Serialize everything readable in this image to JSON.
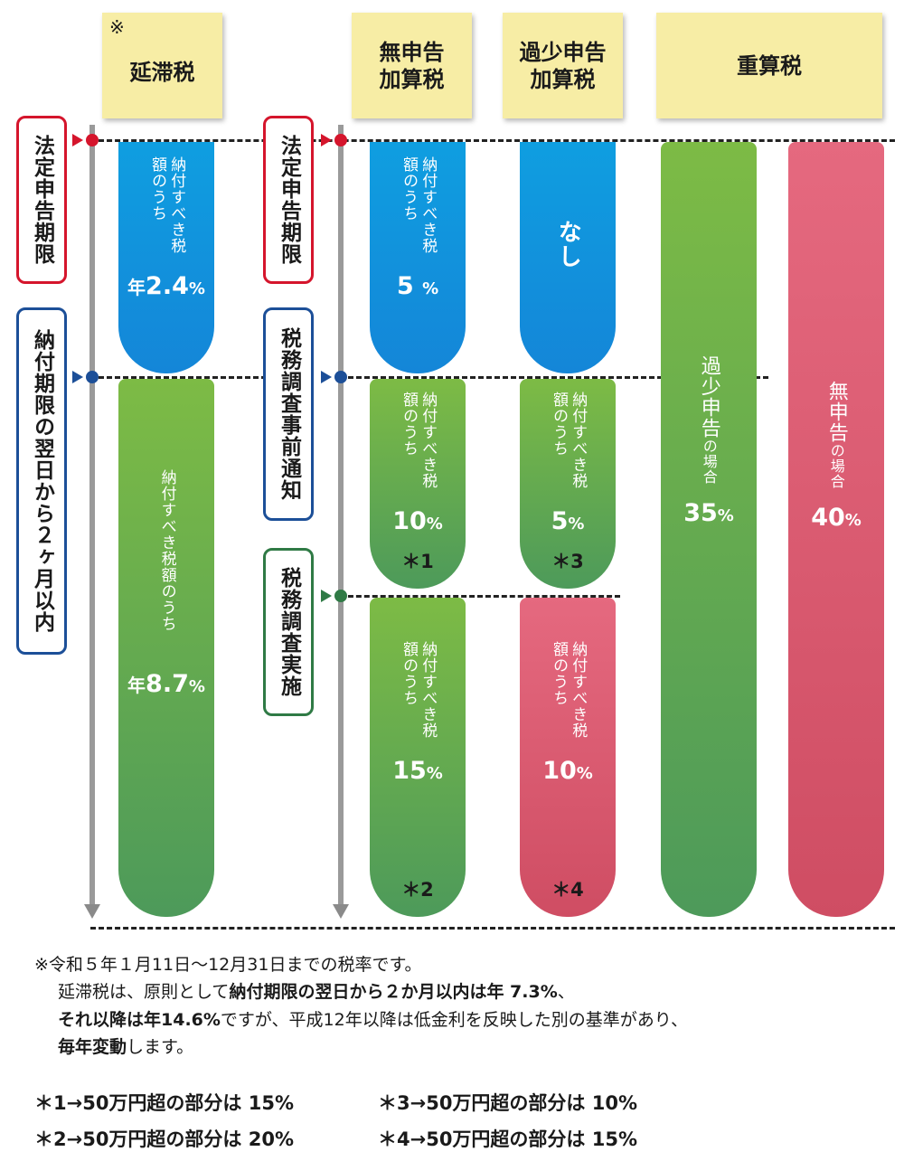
{
  "headers": {
    "entai": {
      "mark": "※",
      "label": "延滞税"
    },
    "mushinkoku": {
      "line1": "無申告",
      "line2": "加算税"
    },
    "kasho": {
      "line1": "過少申告",
      "line2": "加算税"
    },
    "jusan": {
      "label": "重算税"
    }
  },
  "timeline_left": {
    "deadline": "法定申告期限",
    "payment": "納付期限の翌日から２ヶ月以内"
  },
  "timeline_right": {
    "deadline": "法定申告期限",
    "prior_notice": "税務調査事前通知",
    "investigation": "税務調査実施"
  },
  "bars": {
    "entai_top": {
      "text": "納付すべき税額のうち",
      "rate_prefix": "年",
      "rate": "2.4",
      "pct": "%"
    },
    "entai_bottom": {
      "text": "納付すべき税額のうち",
      "rate_prefix": "年",
      "rate": "8.7",
      "pct": "%"
    },
    "mu_1": {
      "text": "納付すべき税額のうち",
      "rate": "5",
      "pct": "%"
    },
    "mu_2": {
      "text": "納付すべき税額のうち",
      "rate": "10",
      "pct": "%",
      "note": "＊1"
    },
    "mu_3": {
      "text": "納付すべき税額のうち",
      "rate": "15",
      "pct": "%",
      "note": "＊2"
    },
    "ka_1": {
      "text": "なし"
    },
    "ka_2": {
      "text": "納付すべき税額のうち",
      "rate": "5",
      "pct": "%",
      "note": "＊3"
    },
    "ka_3": {
      "text": "納付すべき税額のうち",
      "rate": "10",
      "pct": "%",
      "note": "＊4"
    },
    "ju_kasho": {
      "text1": "過少申告",
      "text2": "の場合",
      "rate": "35",
      "pct": "%"
    },
    "ju_mu": {
      "text1": "無申告",
      "text2": "の場合",
      "rate": "40",
      "pct": "%"
    }
  },
  "footnote": {
    "line1": "※令和５年１月11日～12月31日までの税率です。",
    "line2_a": "延滞税は、原則として",
    "line2_b": "納付期限の翌日から２か月以内は年 7.3%",
    "line2_c": "、",
    "line3_a": "それ以降は年14.6%",
    "line3_b": "ですが、平成12年以降は低金利を反映した別の基準があり、",
    "line4_a": "毎年変動",
    "line4_b": "します。"
  },
  "star_notes": [
    "＊1→50万円超の部分は 15%",
    "＊3→50万円超の部分は 10%",
    "＊2→50万円超の部分は 20%",
    "＊4→50万円超の部分は 15%"
  ],
  "colors": {
    "deadline_red": "#d5152c",
    "notice_blue": "#1c4f98",
    "invest_green": "#2f7a45",
    "blue_bar": "#1486d8",
    "green_bar": "#6cb24a",
    "pink_bar": "#de6178",
    "note_yellow": "#f7eda5"
  }
}
